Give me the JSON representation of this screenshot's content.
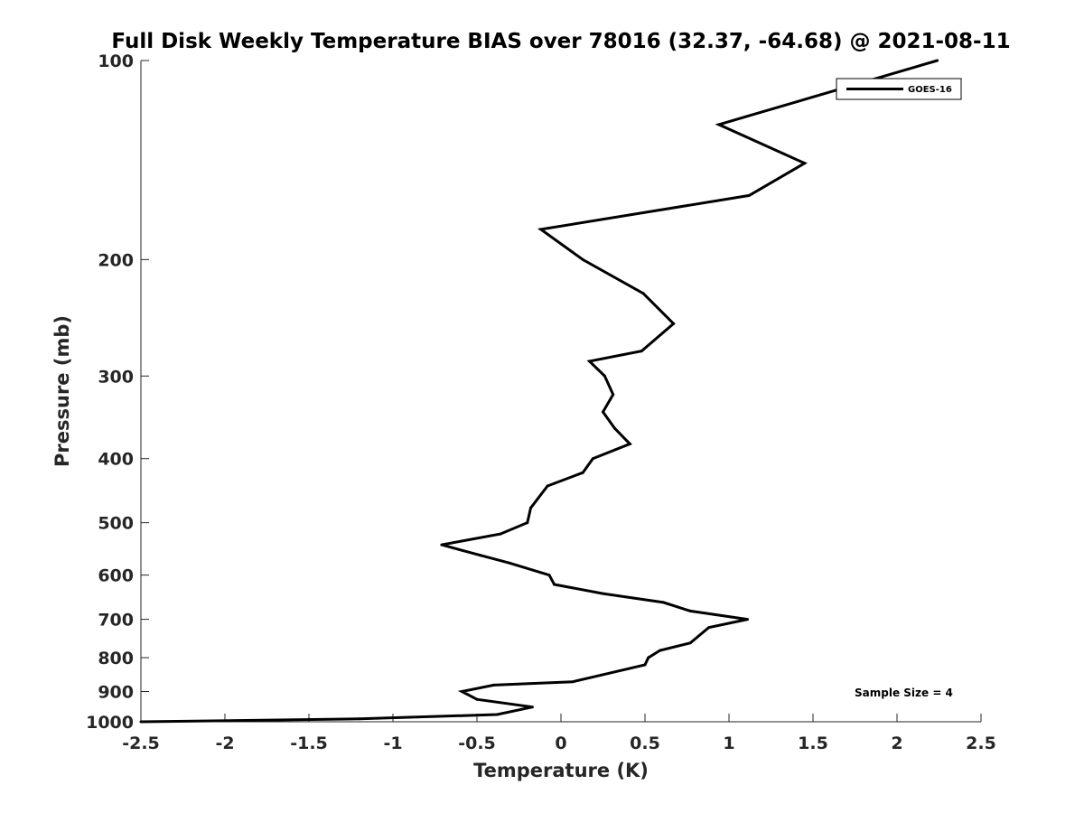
{
  "chart_data": {
    "type": "line",
    "title": "Full Disk Weekly Temperature BIAS over 78016 (32.37, -64.68) @ 2021-08-11",
    "xlabel": "Temperature (K)",
    "ylabel": "Pressure (mb)",
    "xlim": [
      -2.5,
      2.5
    ],
    "ylim": [
      100,
      1000
    ],
    "y_scale": "log",
    "y_reversed": true,
    "grid": false,
    "legend_position": "top-right",
    "x_ticks": [
      -2.5,
      -2,
      -1.5,
      -1,
      -0.5,
      0,
      0.5,
      1,
      1.5,
      2,
      2.5
    ],
    "x_tick_labels": [
      "-2.5",
      "-2",
      "-1.5",
      "-1",
      "-0.5",
      "0",
      "0.5",
      "1",
      "1.5",
      "2",
      "2.5"
    ],
    "y_ticks": [
      100,
      200,
      300,
      400,
      500,
      600,
      700,
      800,
      900,
      1000
    ],
    "y_tick_labels": [
      "100",
      "200",
      "300",
      "400",
      "500",
      "600",
      "700",
      "800",
      "900",
      "1000"
    ],
    "series": [
      {
        "name": "GOES-16",
        "color": "#000000",
        "points": [
          {
            "x": 2.24,
            "y": 100
          },
          {
            "x": 0.94,
            "y": 125
          },
          {
            "x": 1.45,
            "y": 143
          },
          {
            "x": 1.12,
            "y": 160
          },
          {
            "x": -0.12,
            "y": 180
          },
          {
            "x": 0.13,
            "y": 200
          },
          {
            "x": 0.49,
            "y": 225
          },
          {
            "x": 0.67,
            "y": 250
          },
          {
            "x": 0.48,
            "y": 275
          },
          {
            "x": 0.17,
            "y": 285
          },
          {
            "x": 0.26,
            "y": 300
          },
          {
            "x": 0.31,
            "y": 320
          },
          {
            "x": 0.25,
            "y": 340
          },
          {
            "x": 0.32,
            "y": 360
          },
          {
            "x": 0.41,
            "y": 380
          },
          {
            "x": 0.19,
            "y": 400
          },
          {
            "x": 0.13,
            "y": 420
          },
          {
            "x": -0.08,
            "y": 440
          },
          {
            "x": -0.18,
            "y": 475
          },
          {
            "x": -0.2,
            "y": 500
          },
          {
            "x": -0.36,
            "y": 520
          },
          {
            "x": -0.71,
            "y": 540
          },
          {
            "x": -0.48,
            "y": 560
          },
          {
            "x": -0.31,
            "y": 575
          },
          {
            "x": -0.07,
            "y": 600
          },
          {
            "x": -0.04,
            "y": 620
          },
          {
            "x": 0.25,
            "y": 640
          },
          {
            "x": 0.61,
            "y": 660
          },
          {
            "x": 0.77,
            "y": 680
          },
          {
            "x": 1.11,
            "y": 700
          },
          {
            "x": 0.88,
            "y": 720
          },
          {
            "x": 0.77,
            "y": 760
          },
          {
            "x": 0.59,
            "y": 780
          },
          {
            "x": 0.52,
            "y": 800
          },
          {
            "x": 0.5,
            "y": 820
          },
          {
            "x": 0.24,
            "y": 850
          },
          {
            "x": 0.07,
            "y": 870
          },
          {
            "x": -0.4,
            "y": 880
          },
          {
            "x": -0.59,
            "y": 900
          },
          {
            "x": -0.5,
            "y": 925
          },
          {
            "x": -0.17,
            "y": 950
          },
          {
            "x": -0.38,
            "y": 975
          },
          {
            "x": -1.2,
            "y": 990
          },
          {
            "x": -2.5,
            "y": 1000
          }
        ]
      }
    ],
    "annotations": [
      {
        "text": "Sample Size = 4"
      }
    ]
  }
}
